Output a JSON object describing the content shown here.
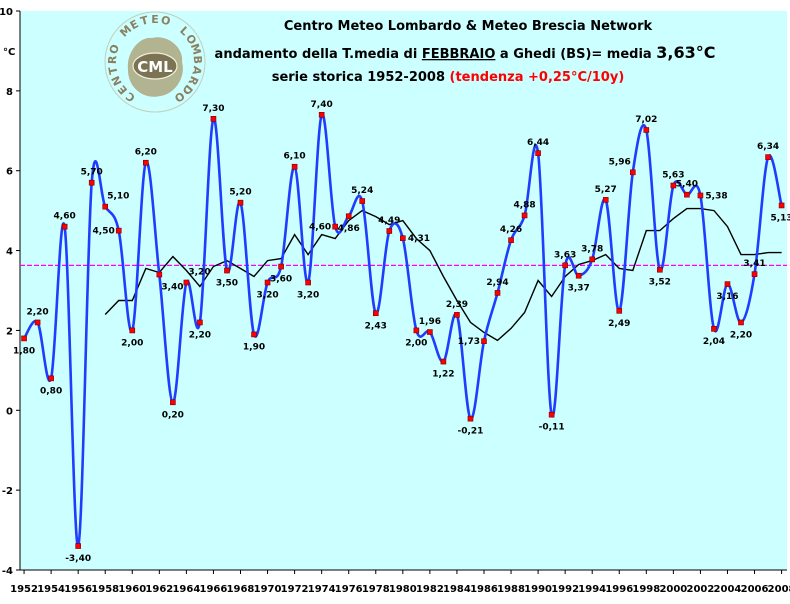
{
  "chart_data": {
    "type": "line",
    "title": "Centro Meteo Lombardo & Meteo Brescia Network",
    "subtitle": {
      "prefix": "andamento della T.media di ",
      "month": "FEBBRAIO",
      "middle": " a Ghedi (BS)= media ",
      "mean": "3,63°C"
    },
    "series_title": "serie storica 1952-2008",
    "trend_text": "(tendenza +0,25°C/10y)",
    "unit": "°C",
    "logo_text": "CENTRO METEO LOMBARDO",
    "logo_badge": "CML",
    "ylim": [
      -4,
      10
    ],
    "yticks": [
      {
        "v": -4,
        "label": "-4"
      },
      {
        "v": -2,
        "label": "-2"
      },
      {
        "v": 0,
        "label": "0"
      },
      {
        "v": 2,
        "label": "2"
      },
      {
        "v": 4,
        "label": "4"
      },
      {
        "v": 6,
        "label": "6"
      },
      {
        "v": 8,
        "label": "8"
      },
      {
        "v": 10,
        "label": "10"
      }
    ],
    "xlim": [
      1951.7,
      2008.4
    ],
    "xticks": [
      "1952",
      "1954",
      "1956",
      "1958",
      "1960",
      "1962",
      "1964",
      "1966",
      "1968",
      "1970",
      "1972",
      "1974",
      "1976",
      "1978",
      "1980",
      "1982",
      "1984",
      "1986",
      "1988",
      "1990",
      "1992",
      "1994",
      "1996",
      "1998",
      "2000",
      "2002",
      "2004",
      "2006",
      "2008"
    ],
    "mean_line": 3.63,
    "colors": {
      "background": "#ccffff",
      "series": "#1f3cff",
      "marker": "#ff0000",
      "moving_average": "#000000",
      "mean_line": "#ff00ff",
      "title": "#000000",
      "trend": "#ff0000"
    },
    "series": [
      {
        "x": [
          1952,
          1953,
          1954,
          1955,
          1956,
          1957,
          1958,
          1959,
          1960,
          1961,
          1962,
          1963,
          1964,
          1965,
          1966,
          1967,
          1968,
          1969,
          1970,
          1971,
          1972,
          1973,
          1974,
          1975,
          1976,
          1977,
          1978,
          1979,
          1980,
          1981,
          1982,
          1983,
          1984,
          1985,
          1986,
          1987,
          1988,
          1989,
          1990,
          1991,
          1992,
          1993,
          1994,
          1995,
          1996,
          1997,
          1998,
          1999,
          2000,
          2001,
          2002,
          2003,
          2004,
          2005,
          2006,
          2007,
          2008
        ],
        "values": [
          1.8,
          2.2,
          0.8,
          4.6,
          -3.4,
          5.7,
          5.1,
          4.5,
          2.0,
          6.2,
          3.4,
          0.2,
          3.2,
          2.2,
          7.3,
          3.5,
          5.2,
          1.9,
          3.2,
          3.6,
          6.1,
          3.2,
          7.4,
          4.6,
          4.86,
          5.24,
          2.43,
          4.49,
          4.31,
          2.0,
          1.96,
          1.22,
          2.39,
          -0.21,
          1.73,
          2.94,
          4.26,
          4.88,
          6.44,
          -0.11,
          3.63,
          3.37,
          3.78,
          5.27,
          2.49,
          5.96,
          7.02,
          3.52,
          5.63,
          5.4,
          5.38,
          2.04,
          3.16,
          2.2,
          3.41,
          6.34,
          5.13
        ]
      },
      {
        "x": [
          1958,
          1959,
          1960,
          1961,
          1962,
          1963,
          1964,
          1965,
          1966,
          1967,
          1968,
          1969,
          1970,
          1971,
          1972,
          1973,
          1974,
          1975,
          1976,
          1977,
          1978,
          1979,
          1980,
          1981,
          1982,
          1983,
          1984,
          1985,
          1986,
          1987,
          1988,
          1989,
          1990,
          1991,
          1992,
          1993,
          1994,
          1995,
          1996,
          1997,
          1998,
          1999,
          2000,
          2001,
          2002,
          2003,
          2004,
          2005,
          2006,
          2007,
          2008
        ],
        "values": [
          2.4,
          2.75,
          2.75,
          3.55,
          3.45,
          3.85,
          3.5,
          3.1,
          3.6,
          3.75,
          3.55,
          3.35,
          3.75,
          3.8,
          4.4,
          3.9,
          4.4,
          4.3,
          4.75,
          5.0,
          4.85,
          4.65,
          4.75,
          4.3,
          4.0,
          3.35,
          2.75,
          2.2,
          1.95,
          1.75,
          2.05,
          2.45,
          3.25,
          2.85,
          3.35,
          3.65,
          3.75,
          3.9,
          3.55,
          3.5,
          4.5,
          4.5,
          4.8,
          5.05,
          5.05,
          5.0,
          4.6,
          3.9,
          3.9,
          3.95,
          3.95
        ]
      }
    ],
    "labels": [
      {
        "x": 1952,
        "t": "1,80",
        "pos": "below"
      },
      {
        "x": 1953,
        "t": "2,20",
        "pos": "above"
      },
      {
        "x": 1954,
        "t": "0,80",
        "pos": "below"
      },
      {
        "x": 1955,
        "t": "4,60",
        "pos": "above"
      },
      {
        "x": 1956,
        "t": "-3,40",
        "pos": "below"
      },
      {
        "x": 1957,
        "t": "5,70",
        "pos": "above"
      },
      {
        "x": 1958,
        "t": "5,10",
        "pos": "aboveright"
      },
      {
        "x": 1959,
        "t": "4,50",
        "pos": "left"
      },
      {
        "x": 1960,
        "t": "2,00",
        "pos": "below"
      },
      {
        "x": 1961,
        "t": "6,20",
        "pos": "above"
      },
      {
        "x": 1962,
        "t": "3,40",
        "pos": "belowright"
      },
      {
        "x": 1963,
        "t": "0,20",
        "pos": "below"
      },
      {
        "x": 1964,
        "t": "3,20",
        "pos": "aboveright"
      },
      {
        "x": 1965,
        "t": "2,20",
        "pos": "below"
      },
      {
        "x": 1966,
        "t": "7,30",
        "pos": "above"
      },
      {
        "x": 1967,
        "t": "3,50",
        "pos": "below"
      },
      {
        "x": 1968,
        "t": "5,20",
        "pos": "above"
      },
      {
        "x": 1969,
        "t": "1,90",
        "pos": "below"
      },
      {
        "x": 1970,
        "t": "3,20",
        "pos": "below"
      },
      {
        "x": 1971,
        "t": "3,60",
        "pos": "below"
      },
      {
        "x": 1972,
        "t": "6,10",
        "pos": "above"
      },
      {
        "x": 1973,
        "t": "3,20",
        "pos": "below"
      },
      {
        "x": 1974,
        "t": "7,40",
        "pos": "above"
      },
      {
        "x": 1975,
        "t": "4,60",
        "pos": "left"
      },
      {
        "x": 1976,
        "t": "4,86",
        "pos": "below"
      },
      {
        "x": 1977,
        "t": "5,24",
        "pos": "above"
      },
      {
        "x": 1978,
        "t": "2,43",
        "pos": "below"
      },
      {
        "x": 1979,
        "t": "4,49",
        "pos": "above"
      },
      {
        "x": 1980,
        "t": "4,31",
        "pos": "right"
      },
      {
        "x": 1981,
        "t": "2,00",
        "pos": "below"
      },
      {
        "x": 1982,
        "t": "1,96",
        "pos": "above"
      },
      {
        "x": 1983,
        "t": "1,22",
        "pos": "below"
      },
      {
        "x": 1984,
        "t": "2,39",
        "pos": "above"
      },
      {
        "x": 1985,
        "t": "-0,21",
        "pos": "below"
      },
      {
        "x": 1986,
        "t": "1,73",
        "pos": "left"
      },
      {
        "x": 1987,
        "t": "2,94",
        "pos": "above"
      },
      {
        "x": 1988,
        "t": "4,26",
        "pos": "above"
      },
      {
        "x": 1989,
        "t": "4,88",
        "pos": "above"
      },
      {
        "x": 1990,
        "t": "6,44",
        "pos": "above"
      },
      {
        "x": 1991,
        "t": "-0,11",
        "pos": "below"
      },
      {
        "x": 1992,
        "t": "3,63",
        "pos": "above"
      },
      {
        "x": 1993,
        "t": "3,37",
        "pos": "below"
      },
      {
        "x": 1994,
        "t": "3,78",
        "pos": "above"
      },
      {
        "x": 1995,
        "t": "5,27",
        "pos": "above"
      },
      {
        "x": 1996,
        "t": "2,49",
        "pos": "below"
      },
      {
        "x": 1997,
        "t": "5,96",
        "pos": "aboveleft"
      },
      {
        "x": 1998,
        "t": "7,02",
        "pos": "above"
      },
      {
        "x": 1999,
        "t": "3,52",
        "pos": "below"
      },
      {
        "x": 2000,
        "t": "5,63",
        "pos": "above"
      },
      {
        "x": 2001,
        "t": "5,40",
        "pos": "above"
      },
      {
        "x": 2002,
        "t": "5,38",
        "pos": "right"
      },
      {
        "x": 2003,
        "t": "2,04",
        "pos": "below"
      },
      {
        "x": 2004,
        "t": "3,16",
        "pos": "below"
      },
      {
        "x": 2005,
        "t": "2,20",
        "pos": "below"
      },
      {
        "x": 2006,
        "t": "3,41",
        "pos": "above"
      },
      {
        "x": 2007,
        "t": "6,34",
        "pos": "above"
      },
      {
        "x": 2008,
        "t": "5,13",
        "pos": "below"
      }
    ]
  }
}
